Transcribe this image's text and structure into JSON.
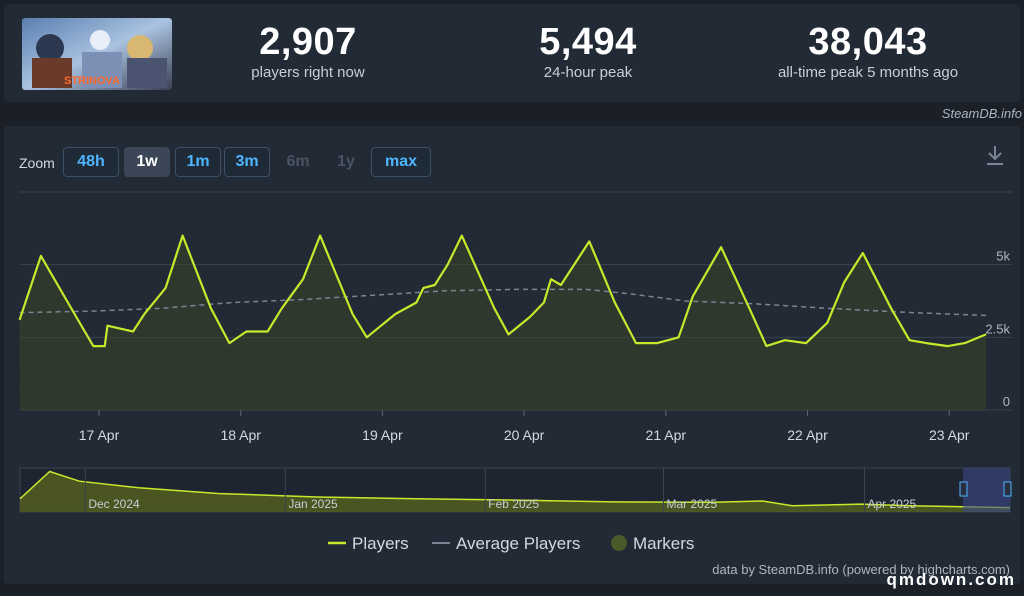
{
  "stats": [
    {
      "value": "2,907",
      "label": "players right now"
    },
    {
      "value": "5,494",
      "label": "24-hour peak"
    },
    {
      "value": "38,043",
      "label": "all-time peak 5 months ago"
    }
  ],
  "game_logo_text": "STRINOVA",
  "credit_top": "SteamDB.info",
  "zoom": {
    "label": "Zoom",
    "buttons": [
      {
        "label": "48h",
        "state": "normal"
      },
      {
        "label": "1w",
        "state": "active"
      },
      {
        "label": "1m",
        "state": "normal"
      },
      {
        "label": "3m",
        "state": "normal"
      },
      {
        "label": "6m",
        "state": "disabled"
      },
      {
        "label": "1y",
        "state": "disabled"
      },
      {
        "label": "max",
        "state": "normal"
      }
    ]
  },
  "legend": {
    "players": "Players",
    "average": "Average Players",
    "markers": "Markers"
  },
  "credit_bottom": "data by SteamDB.info (powered by highcharts.com)",
  "watermark": "qmdown.com",
  "colors": {
    "players_line": "#c8e82c",
    "average_line": "#7a8494",
    "area_fill": "#3a4424",
    "accent_blue": "#4fb5ff"
  },
  "chart_data": {
    "type": "line",
    "x_start_label": "16 Apr ~14:00",
    "x_unit": "days",
    "y_ticks": [
      0,
      2500,
      5000
    ],
    "y_tick_labels": [
      "0",
      "2.5k",
      "5k"
    ],
    "ylim": [
      0,
      7500
    ],
    "x_ticks": [
      "17 Apr",
      "18 Apr",
      "19 Apr",
      "20 Apr",
      "21 Apr",
      "22 Apr",
      "23 Apr"
    ],
    "series": [
      {
        "name": "Players",
        "points": [
          [
            0.0,
            3100
          ],
          [
            0.15,
            5300
          ],
          [
            0.4,
            3200
          ],
          [
            0.52,
            2200
          ],
          [
            0.6,
            2200
          ],
          [
            0.62,
            2900
          ],
          [
            0.8,
            2700
          ],
          [
            0.88,
            3300
          ],
          [
            1.03,
            4200
          ],
          [
            1.15,
            6000
          ],
          [
            1.35,
            3500
          ],
          [
            1.48,
            2300
          ],
          [
            1.6,
            2700
          ],
          [
            1.75,
            2700
          ],
          [
            1.85,
            3500
          ],
          [
            2.0,
            4500
          ],
          [
            2.12,
            6000
          ],
          [
            2.35,
            3300
          ],
          [
            2.45,
            2500
          ],
          [
            2.65,
            3300
          ],
          [
            2.8,
            3700
          ],
          [
            2.85,
            4200
          ],
          [
            2.93,
            4300
          ],
          [
            3.02,
            5000
          ],
          [
            3.12,
            6000
          ],
          [
            3.35,
            3500
          ],
          [
            3.45,
            2600
          ],
          [
            3.6,
            3200
          ],
          [
            3.7,
            3700
          ],
          [
            3.75,
            4500
          ],
          [
            3.82,
            4300
          ],
          [
            4.02,
            5800
          ],
          [
            4.2,
            3700
          ],
          [
            4.35,
            2300
          ],
          [
            4.5,
            2300
          ],
          [
            4.65,
            2500
          ],
          [
            4.75,
            3900
          ],
          [
            4.95,
            5600
          ],
          [
            5.15,
            3500
          ],
          [
            5.27,
            2200
          ],
          [
            5.4,
            2400
          ],
          [
            5.55,
            2300
          ],
          [
            5.7,
            3000
          ],
          [
            5.82,
            4400
          ],
          [
            5.95,
            5400
          ],
          [
            6.15,
            3500
          ],
          [
            6.28,
            2400
          ],
          [
            6.4,
            2300
          ],
          [
            6.55,
            2200
          ],
          [
            6.67,
            2300
          ],
          [
            6.82,
            2600
          ]
        ]
      },
      {
        "name": "Average Players",
        "points": [
          [
            0.0,
            3350
          ],
          [
            0.5,
            3400
          ],
          [
            1.0,
            3500
          ],
          [
            1.5,
            3700
          ],
          [
            2.0,
            3800
          ],
          [
            2.5,
            3950
          ],
          [
            3.0,
            4100
          ],
          [
            3.5,
            4150
          ],
          [
            4.0,
            4150
          ],
          [
            4.3,
            4000
          ],
          [
            4.7,
            3750
          ],
          [
            5.2,
            3650
          ],
          [
            5.7,
            3500
          ],
          [
            6.3,
            3350
          ],
          [
            6.82,
            3250
          ]
        ]
      }
    ],
    "navigator": {
      "x_labels": [
        "Dec 2024",
        "Jan 2025",
        "Feb 2025",
        "Mar 2025",
        "Apr 2025"
      ],
      "points": [
        [
          0.0,
          0.3
        ],
        [
          0.03,
          0.92
        ],
        [
          0.06,
          0.7
        ],
        [
          0.12,
          0.55
        ],
        [
          0.2,
          0.42
        ],
        [
          0.3,
          0.34
        ],
        [
          0.4,
          0.3
        ],
        [
          0.5,
          0.27
        ],
        [
          0.6,
          0.23
        ],
        [
          0.7,
          0.22
        ],
        [
          0.75,
          0.25
        ],
        [
          0.78,
          0.14
        ],
        [
          0.85,
          0.18
        ],
        [
          0.9,
          0.14
        ],
        [
          1.0,
          0.1
        ]
      ]
    }
  }
}
